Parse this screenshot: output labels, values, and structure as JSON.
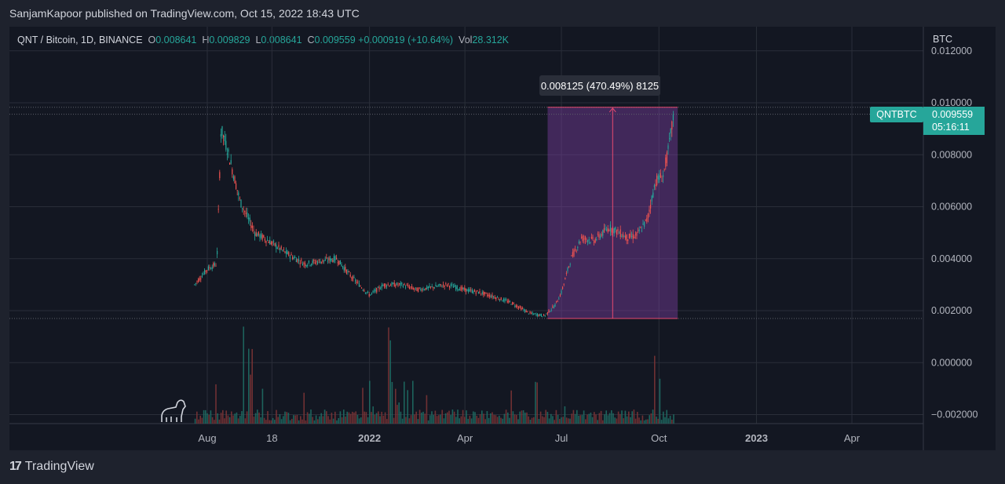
{
  "header": {
    "title": "SanjamKapoor published on TradingView.com, Oct 15, 2022 18:43 UTC"
  },
  "legend": {
    "symbol": "QNT / Bitcoin, 1D, BINANCE",
    "o_key": "O",
    "o_val": "0.008641",
    "h_key": "H",
    "h_val": "0.009829",
    "l_key": "L",
    "l_val": "0.008641",
    "c_key": "C",
    "c_val": "0.009559",
    "change": "+0.000919 (+10.64%)",
    "vol_key": "Vol",
    "vol_val": "28.312K"
  },
  "footer": {
    "brand": "TradingView",
    "mark": "17"
  },
  "colors": {
    "bg": "#131722",
    "up": "#26a69a",
    "down": "#ef5350",
    "range": "#7b3fa0",
    "measure": "#e84a6f",
    "badge": "#26a69a"
  },
  "icons": [
    "tradingview-logo-icon",
    "dinosaur-icon"
  ],
  "chart_data": {
    "type": "candlestick",
    "currency_label": "BTC",
    "y_ticks": [
      "0.012000",
      "0.010000",
      "0.008000",
      "0.006000",
      "0.004000",
      "0.002000",
      "0.000000",
      "−0.002000"
    ],
    "x_ticks": [
      "Aug",
      "18",
      "2022",
      "Apr",
      "Jul",
      "Oct",
      "2023",
      "Apr"
    ],
    "ylim": [
      -0.0024,
      0.0124
    ],
    "series": [
      {
        "kind": "price",
        "x": [
          "2021-07-20",
          "2021-08-01",
          "2021-08-10",
          "2021-08-14",
          "2021-08-20",
          "2021-09-01",
          "2021-09-15",
          "2021-10-01",
          "2021-10-15",
          "2021-11-01",
          "2021-11-15",
          "2021-12-01",
          "2021-12-15",
          "2022-01-01",
          "2022-01-15",
          "2022-02-01",
          "2022-02-15",
          "2022-03-01",
          "2022-03-15",
          "2022-04-01",
          "2022-04-15",
          "2022-05-01",
          "2022-05-15",
          "2022-06-01",
          "2022-06-15",
          "2022-06-25",
          "2022-07-01",
          "2022-07-10",
          "2022-07-20",
          "2022-08-01",
          "2022-08-15",
          "2022-08-25",
          "2022-09-01",
          "2022-09-10",
          "2022-09-20",
          "2022-09-28",
          "2022-10-05",
          "2022-10-10",
          "2022-10-15"
        ],
        "close": [
          0.003,
          0.0036,
          0.0038,
          0.009,
          0.0082,
          0.0062,
          0.005,
          0.0046,
          0.0042,
          0.0038,
          0.0039,
          0.004,
          0.0033,
          0.0026,
          0.003,
          0.003,
          0.0028,
          0.0029,
          0.003,
          0.0028,
          0.0027,
          0.0025,
          0.0023,
          0.0019,
          0.0018,
          0.0022,
          0.0027,
          0.004,
          0.0048,
          0.0047,
          0.0052,
          0.005,
          0.0048,
          0.0049,
          0.0055,
          0.007,
          0.0072,
          0.0082,
          0.009559
        ]
      }
    ],
    "measure": {
      "label": "0.008125 (470.49%) 8125",
      "from_date": "2022-06-18",
      "to_date": "2022-10-15",
      "low": 0.0017,
      "high": 0.009825
    },
    "last_price": {
      "symbol": "QNTBTC",
      "price": "0.009559",
      "countdown": "05:16:11"
    }
  }
}
